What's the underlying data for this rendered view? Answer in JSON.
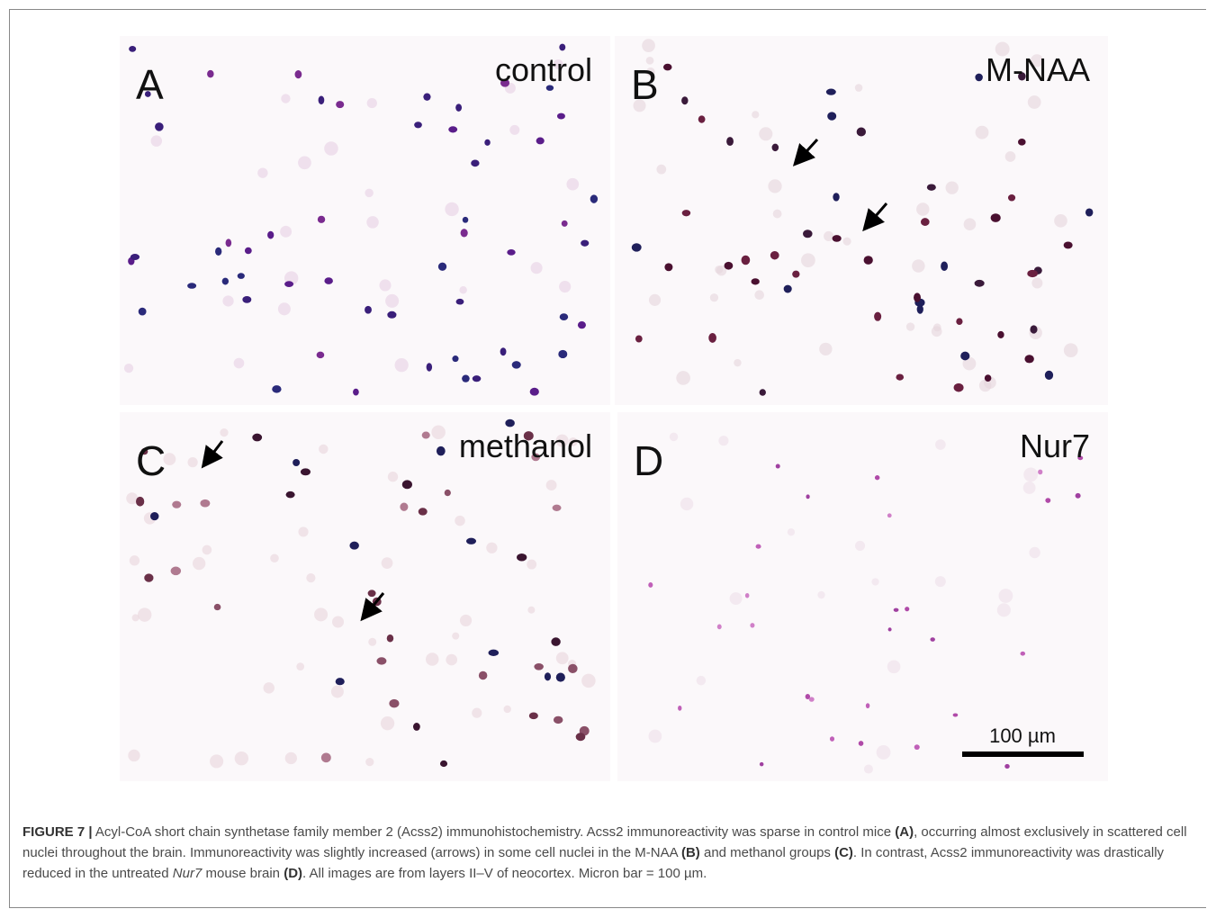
{
  "panels": [
    {
      "letter": "A",
      "label": "control"
    },
    {
      "letter": "B",
      "label": "M-NAA"
    },
    {
      "letter": "C",
      "label": "methanol"
    },
    {
      "letter": "D",
      "label": "Nur7"
    }
  ],
  "scale_bar": "100 µm",
  "caption": {
    "parts": [
      "FIGURE 7 |",
      " Acyl-CoA short chain synthetase family member 2 (Acss2) immunohistochemistry. Acss2 immunoreactivity was sparse in control mice ",
      "(A)",
      ", occurring almost exclusively in scattered cell nuclei throughout the brain. Immunoreactivity was slightly increased (arrows) in some cell nuclei in the M-NAA ",
      "(B)",
      " and methanol groups ",
      "(C)",
      ". In contrast, Acss2 immunoreactivity was drastically reduced in the untreated ",
      "Nur7",
      " mouse brain ",
      "(D)",
      ". All images are from layers II–V of neocortex. Micron bar = 100 µm."
    ]
  }
}
